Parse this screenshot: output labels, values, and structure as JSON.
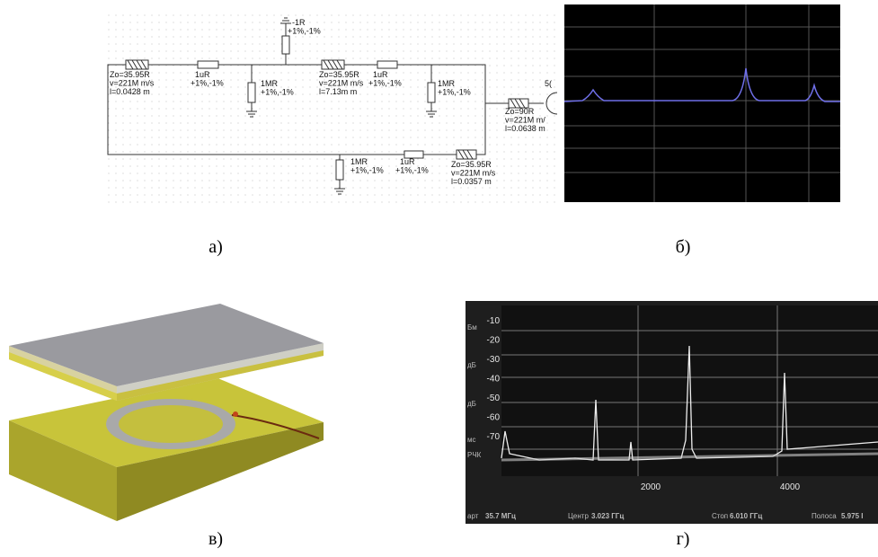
{
  "figure": {
    "panels": [
      {
        "label": "а)",
        "labels": [
          {
            "lines": [
              "Zo=35.95R",
              "v=221M m/s",
              "l=0.0428 m"
            ]
          },
          {
            "lines": [
              "1uR",
              "+1%,-1%"
            ]
          },
          {
            "lines": [
              "1MR",
              "+1%,-1%"
            ]
          },
          {
            "lines": [
              "-1R",
              "+1%,-1%"
            ]
          },
          {
            "lines": [
              "Zo=35.95R",
              "v=221M m/s",
              "l=7.13m m"
            ]
          },
          {
            "lines": [
              "1uR",
              "+1%,-1%"
            ]
          },
          {
            "lines": [
              "1MR",
              "+1%,-1%"
            ]
          },
          {
            "lines": [
              "Zo=90R",
              "v=221M m/",
              "l=0.0638 m"
            ]
          },
          {
            "lines": [
              "5("
            ]
          },
          {
            "lines": [
              "1MR",
              "+1%,-1%"
            ]
          },
          {
            "lines": [
              "1uR",
              "+1%,-1%"
            ]
          },
          {
            "lines": [
              "Zo=35.95R",
              "v=221M m/s",
              "l=0.0357 m"
            ]
          }
        ]
      },
      {
        "label": "б)"
      },
      {
        "label": "в)"
      },
      {
        "label": "г)",
        "y_labels": [
          "-10",
          "-20",
          "-30",
          "-40",
          "-50",
          "-60",
          "-70"
        ],
        "side_labels": [
          "Бм",
          "дБ",
          "дБ",
          "мс",
          "РЧК"
        ],
        "x_labels": [
          "2000",
          "4000"
        ],
        "footer": [
          "арт",
          "35.7 МГц",
          "Центр",
          "3.023 ГГц",
          "Стоп",
          "6.010 ГГц",
          "Полоса",
          "5.975 I"
        ]
      }
    ]
  }
}
